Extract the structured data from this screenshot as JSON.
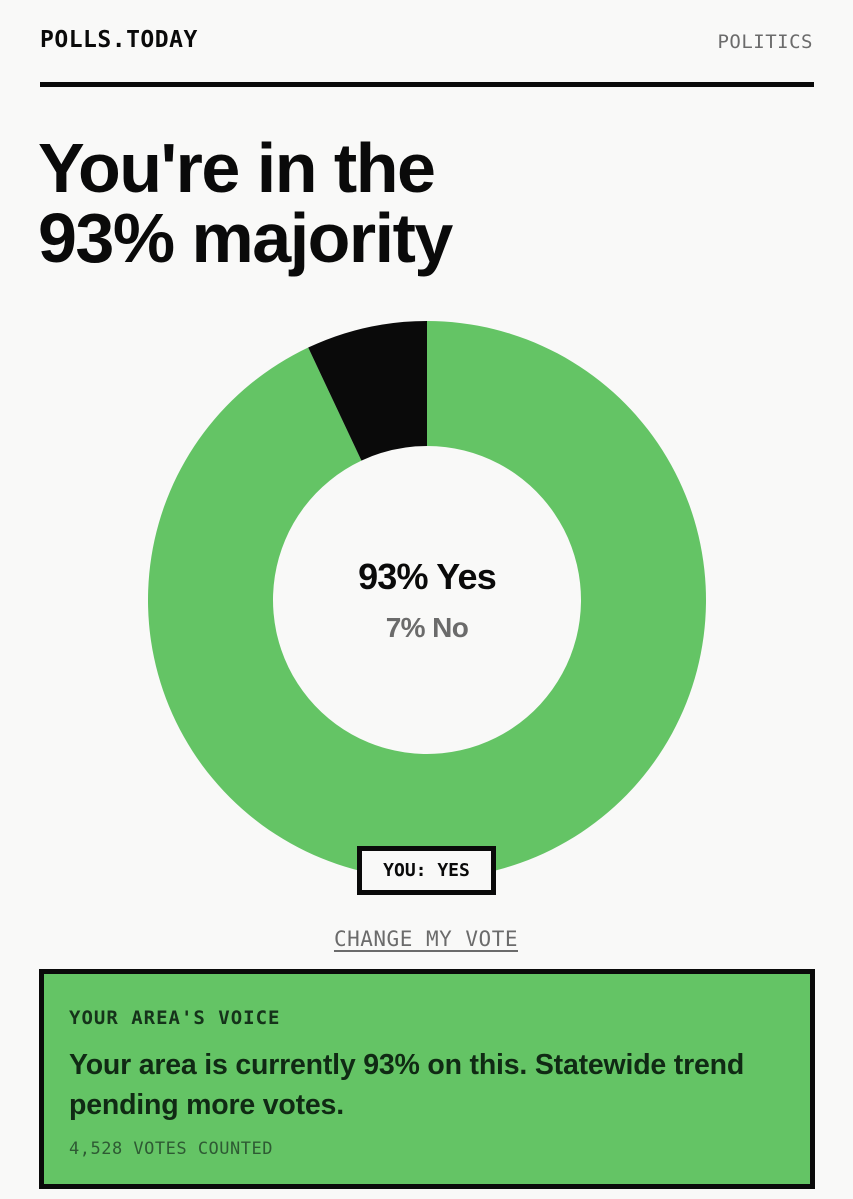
{
  "header": {
    "brand": "POLLS.TODAY",
    "section": "POLITICS"
  },
  "headline": {
    "line1": "You're in the",
    "line2": "93% majority"
  },
  "chart_data": {
    "type": "pie",
    "style": "donut",
    "categories": [
      "Yes",
      "No"
    ],
    "values": [
      93,
      7
    ],
    "colors": [
      "#64c465",
      "#0a0a0a"
    ],
    "center_primary": "93% Yes",
    "center_secondary": "7% No"
  },
  "user_vote": {
    "badge": "YOU: YES"
  },
  "actions": {
    "change_vote": "CHANGE MY VOTE"
  },
  "area": {
    "label": "YOUR AREA'S VOICE",
    "message": "Your area is currently 93% on this. Statewide trend pending more votes.",
    "count": "4,528 VOTES COUNTED"
  }
}
